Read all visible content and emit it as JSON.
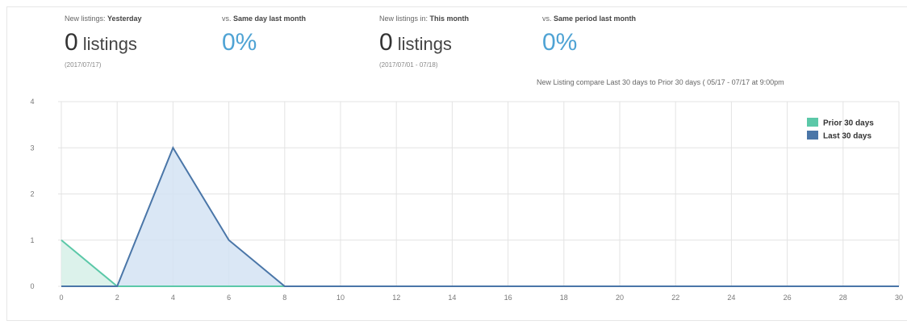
{
  "kpis": [
    {
      "label_prefix": "New listings: ",
      "label_bold": "Yesterday",
      "value": "0",
      "unit": "listings",
      "date": "(2017/07/17)"
    },
    {
      "label_prefix": "vs. ",
      "label_bold": "Same day last month",
      "percent": "0%"
    },
    {
      "label_prefix": "New listings in: ",
      "label_bold": "This month",
      "value": "0",
      "unit": "listings",
      "date": "(2017/07/01 - 07/18)"
    },
    {
      "label_prefix": "vs. ",
      "label_bold": "Same period last month",
      "percent": "0%"
    }
  ],
  "compare_note": "New Listing compare Last 30 days to Prior 30 days ( 05/17 - 07/17 at 9:00pm",
  "chart_data": {
    "type": "area",
    "x": [
      0,
      2,
      4,
      6,
      8,
      10,
      12,
      14,
      16,
      18,
      20,
      22,
      24,
      26,
      28,
      30
    ],
    "x_ticks": [
      "0",
      "2",
      "4",
      "6",
      "8",
      "10",
      "12",
      "14",
      "16",
      "18",
      "20",
      "22",
      "24",
      "26",
      "28",
      "30"
    ],
    "y_ticks": [
      "0",
      "1",
      "2",
      "3",
      "4"
    ],
    "xlim": [
      0,
      30
    ],
    "ylim": [
      0,
      4
    ],
    "grid": true,
    "legend_position": "top-right",
    "series": [
      {
        "name": "Prior 30 days",
        "color": "#5bc8a8",
        "fill": "#d6f0e7",
        "points": [
          [
            0,
            1
          ],
          [
            2,
            0
          ],
          [
            4,
            0
          ],
          [
            6,
            0
          ],
          [
            8,
            0
          ],
          [
            10,
            0
          ],
          [
            12,
            0
          ],
          [
            14,
            0
          ],
          [
            16,
            0
          ],
          [
            18,
            0
          ],
          [
            20,
            0
          ],
          [
            22,
            0
          ],
          [
            24,
            0
          ],
          [
            26,
            0
          ],
          [
            28,
            0
          ],
          [
            30,
            0
          ]
        ]
      },
      {
        "name": "Last 30 days",
        "color": "#4a76a8",
        "fill": "#d3e3f3",
        "points": [
          [
            0,
            0
          ],
          [
            2,
            0
          ],
          [
            4,
            3
          ],
          [
            6,
            1
          ],
          [
            8,
            0
          ],
          [
            10,
            0
          ],
          [
            12,
            0
          ],
          [
            14,
            0
          ],
          [
            16,
            0
          ],
          [
            18,
            0
          ],
          [
            20,
            0
          ],
          [
            22,
            0
          ],
          [
            24,
            0
          ],
          [
            26,
            0
          ],
          [
            28,
            0
          ],
          [
            30,
            0
          ]
        ]
      }
    ]
  }
}
